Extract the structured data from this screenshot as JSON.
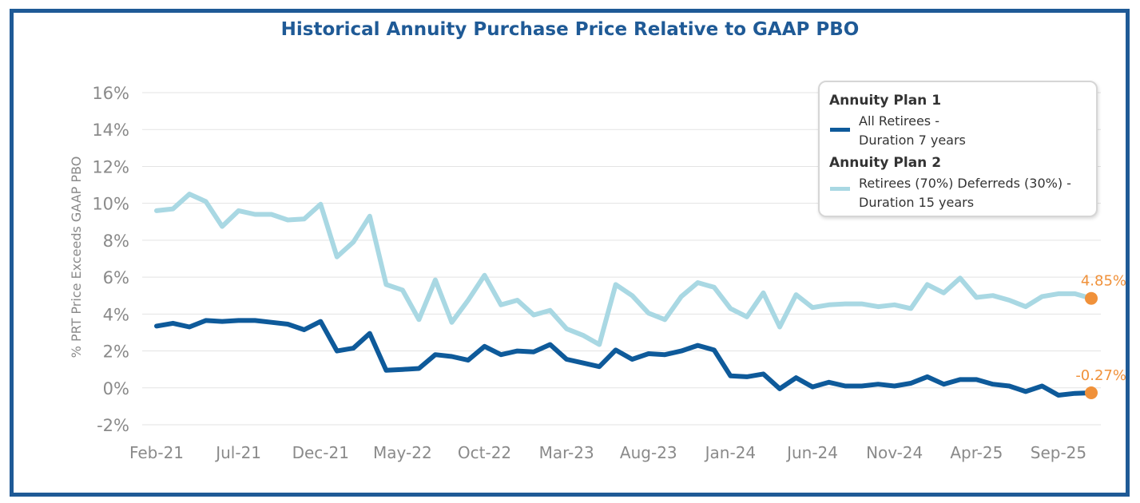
{
  "chart_data": {
    "type": "line",
    "title": "Historical Annuity Purchase Price Relative to GAAP PBO",
    "ylabel": "% PRT Price Exceeds GAAP PBO",
    "xlabel": "",
    "ylim": [
      -2,
      16
    ],
    "yticks": [
      -2,
      0,
      2,
      4,
      6,
      8,
      10,
      12,
      14,
      16
    ],
    "ytick_labels": [
      "-2%",
      "0%",
      "2%",
      "4%",
      "6%",
      "8%",
      "10%",
      "12%",
      "14%",
      "16%"
    ],
    "x": [
      "Feb-21",
      "Mar-21",
      "Apr-21",
      "May-21",
      "Jun-21",
      "Jul-21",
      "Aug-21",
      "Sep-21",
      "Oct-21",
      "Nov-21",
      "Dec-21",
      "Jan-22",
      "Feb-22",
      "Mar-22",
      "Apr-22",
      "May-22",
      "Jun-22",
      "Jul-22",
      "Aug-22",
      "Sep-22",
      "Oct-22",
      "Nov-22",
      "Dec-22",
      "Jan-23",
      "Feb-23",
      "Mar-23",
      "Apr-23",
      "May-23",
      "Jun-23",
      "Jul-23",
      "Aug-23",
      "Sep-23",
      "Oct-23",
      "Nov-23",
      "Dec-23",
      "Jan-24",
      "Feb-24",
      "Mar-24",
      "Apr-24",
      "May-24",
      "Jun-24",
      "Jul-24",
      "Aug-24",
      "Sep-24",
      "Oct-24",
      "Nov-24",
      "Dec-24",
      "Jan-25",
      "Feb-25",
      "Mar-25",
      "Apr-25",
      "May-25",
      "Jun-25",
      "Jul-25",
      "Aug-25",
      "Sep-25",
      "Oct-25",
      "Nov-25"
    ],
    "xtick_labels": [
      "Feb-21",
      "Jul-21",
      "Dec-21",
      "May-22",
      "Oct-22",
      "Mar-23",
      "Aug-23",
      "Jan-24",
      "Jun-24",
      "Nov-24",
      "Apr-25",
      "Sep-25"
    ],
    "grid": true,
    "legend_position": "top-right",
    "series": [
      {
        "name": "All Retirees - Duration 7 years",
        "group": "Annuity Plan 1",
        "color": "#0e5a9a",
        "end_label": "-0.27%",
        "values": [
          3.35,
          3.5,
          3.3,
          3.65,
          3.6,
          3.65,
          3.65,
          3.55,
          3.45,
          3.15,
          3.6,
          2.0,
          2.15,
          2.95,
          0.95,
          1.0,
          1.05,
          1.8,
          1.7,
          1.5,
          2.25,
          1.8,
          2.0,
          1.95,
          2.35,
          1.55,
          1.35,
          1.15,
          2.05,
          1.55,
          1.85,
          1.8,
          2.0,
          2.3,
          2.05,
          0.65,
          0.6,
          0.75,
          -0.05,
          0.55,
          0.05,
          0.3,
          0.1,
          0.1,
          0.2,
          0.1,
          0.25,
          0.6,
          0.2,
          0.45,
          0.45,
          0.2,
          0.1,
          -0.2,
          0.1,
          -0.4,
          -0.3,
          -0.27
        ]
      },
      {
        "name": "Retirees (70%) Deferreds (30%) - Duration 15 years",
        "group": "Annuity Plan 2",
        "color": "#a9d8e3",
        "end_label": "4.85%",
        "values": [
          9.6,
          9.7,
          10.5,
          10.1,
          8.75,
          9.6,
          9.4,
          9.4,
          9.1,
          9.15,
          9.95,
          7.1,
          7.9,
          9.3,
          5.6,
          5.3,
          3.7,
          5.85,
          3.55,
          4.75,
          6.1,
          4.5,
          4.75,
          3.95,
          4.2,
          3.2,
          2.85,
          2.35,
          5.6,
          5.0,
          4.05,
          3.7,
          4.95,
          5.7,
          5.45,
          4.3,
          3.85,
          5.15,
          3.3,
          5.05,
          4.35,
          4.5,
          4.55,
          4.55,
          4.4,
          4.5,
          4.3,
          5.6,
          5.15,
          5.95,
          4.9,
          5.0,
          4.75,
          4.4,
          4.95,
          5.1,
          5.1,
          4.85
        ]
      }
    ]
  },
  "legend": {
    "group1_title": "Annuity Plan 1",
    "group1_line1": "All Retirees -",
    "group1_line2": "Duration 7 years",
    "group2_title": "Annuity Plan 2",
    "group2_line1": "Retirees (70%) Deferreds (30%) -",
    "group2_line2": "Duration 15 years"
  },
  "colors": {
    "frame": "#1f5a96",
    "title": "#1f5a96",
    "axis_text": "#8a8a8a",
    "grid": "#e3e3e3",
    "end_marker": "#f0913a"
  }
}
